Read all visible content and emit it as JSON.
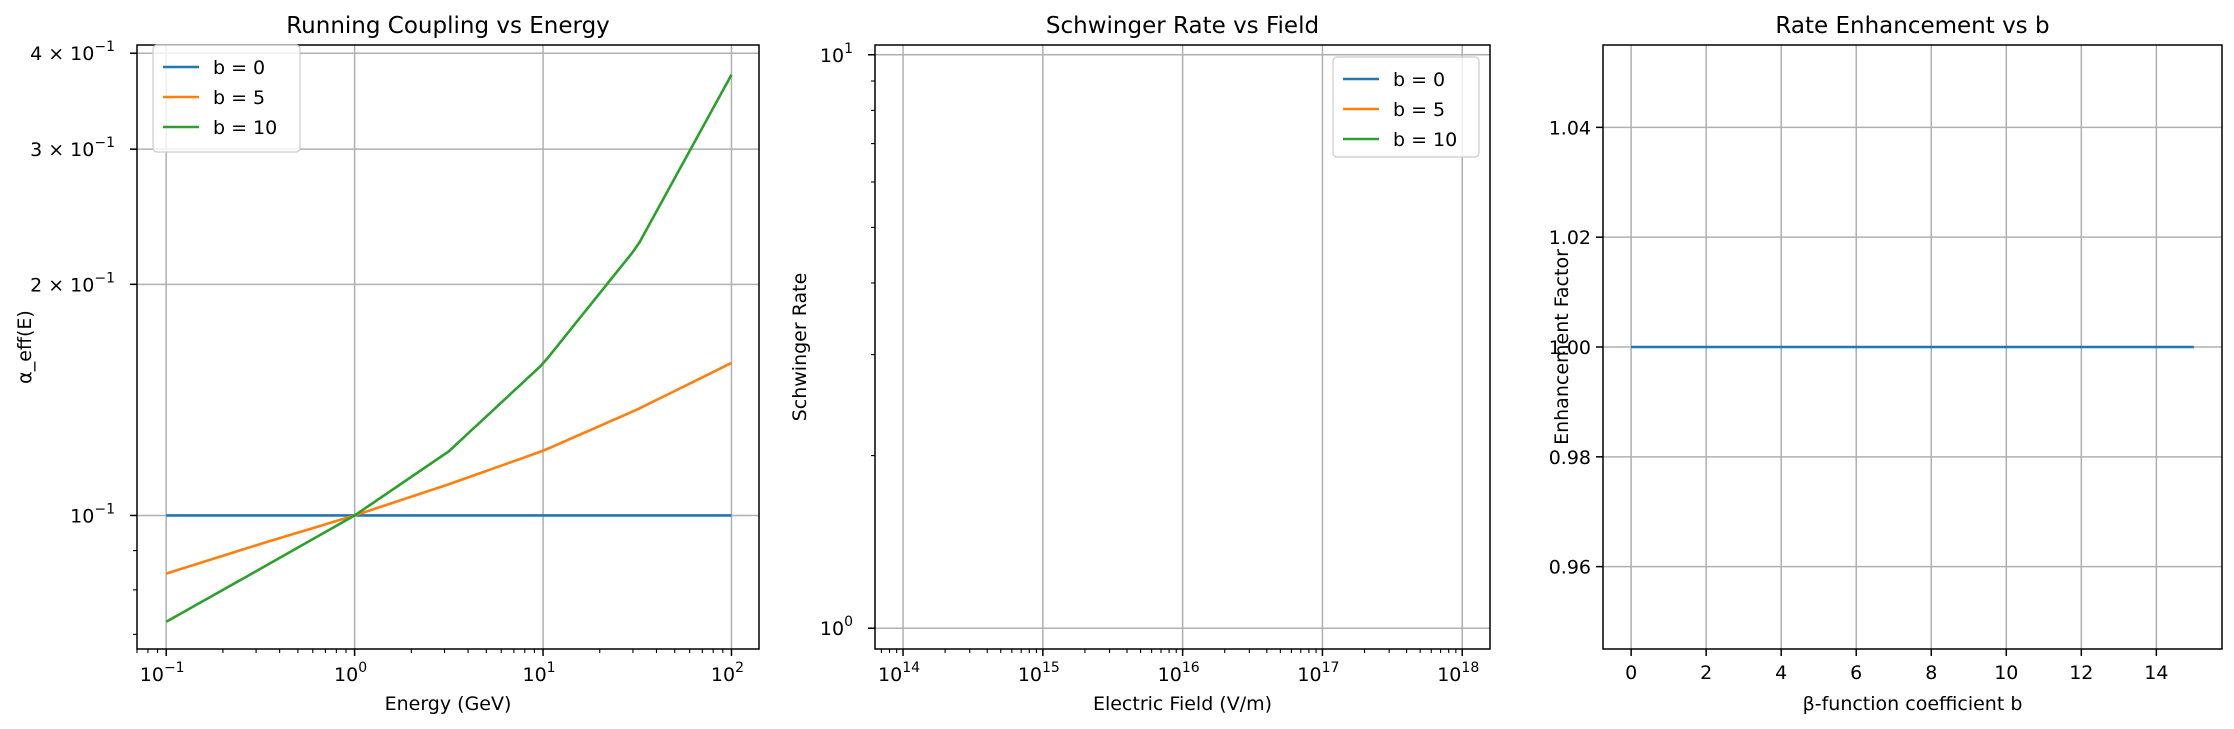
{
  "chart_data": [
    {
      "type": "line",
      "title": "Running Coupling vs Energy",
      "xlabel": "Energy (GeV)",
      "ylabel": "α_eff(E)",
      "xscale": "log",
      "yscale": "log",
      "xlim": [
        0.07,
        140
      ],
      "ylim": [
        0.067,
        0.41
      ],
      "xticks": [
        {
          "value": 0.1,
          "base": "10",
          "exp": "−1"
        },
        {
          "value": 1,
          "base": "10",
          "exp": "0"
        },
        {
          "value": 10,
          "base": "10",
          "exp": "1"
        },
        {
          "value": 100,
          "base": "10",
          "exp": "2"
        }
      ],
      "yticks": [
        {
          "value": 0.1,
          "label": "10",
          "exp": "−1"
        },
        {
          "value": 0.2,
          "label": "2 × 10",
          "exp": "−1"
        },
        {
          "value": 0.3,
          "label": "3 × 10",
          "exp": "−1"
        },
        {
          "value": 0.4,
          "label": "4 × 10",
          "exp": "−1"
        }
      ],
      "grid": true,
      "legend_position": "top-left",
      "series": [
        {
          "name": "b = 0",
          "color": "#1f77b4",
          "x": [
            0.1,
            0.316,
            1,
            3.16,
            10,
            31.6,
            100
          ],
          "y": [
            0.1,
            0.1,
            0.1,
            0.1,
            0.1,
            0.1,
            0.1
          ]
        },
        {
          "name": "b = 5",
          "color": "#ff7f0e",
          "x": [
            0.1,
            0.316,
            1,
            3.16,
            10,
            31.6,
            100
          ],
          "y": [
            0.084,
            0.0918,
            0.1,
            0.1098,
            0.1214,
            0.1374,
            0.158
          ]
        },
        {
          "name": "b = 10",
          "color": "#2ca02c",
          "x": [
            0.1,
            0.316,
            1,
            3.16,
            10,
            31.6,
            100
          ],
          "y": [
            0.0727,
            0.0852,
            0.1,
            0.1212,
            0.1576,
            0.224,
            0.375
          ]
        }
      ]
    },
    {
      "type": "line",
      "title": "Schwinger Rate vs Field",
      "xlabel": "Electric Field (V/m)",
      "ylabel": "Schwinger Rate",
      "xscale": "log",
      "yscale": "log",
      "xlim": [
        63000000000000.0,
        1.58e+18
      ],
      "ylim": [
        0.92,
        10.4
      ],
      "xticks": [
        {
          "value": 100000000000000.0,
          "base": "10",
          "exp": "14"
        },
        {
          "value": 1000000000000000.0,
          "base": "10",
          "exp": "15"
        },
        {
          "value": 1e+16,
          "base": "10",
          "exp": "16"
        },
        {
          "value": 1e+17,
          "base": "10",
          "exp": "17"
        },
        {
          "value": 1e+18,
          "base": "10",
          "exp": "18"
        }
      ],
      "yticks": [
        {
          "value": 1,
          "label": "10",
          "exp": "0"
        },
        {
          "value": 10,
          "label": "10",
          "exp": "1"
        }
      ],
      "grid": true,
      "legend_position": "top-right",
      "series": [
        {
          "name": "b = 0",
          "color": "#1f77b4",
          "x": [],
          "y": []
        },
        {
          "name": "b = 5",
          "color": "#ff7f0e",
          "x": [],
          "y": []
        },
        {
          "name": "b = 10",
          "color": "#2ca02c",
          "x": [],
          "y": []
        }
      ]
    },
    {
      "type": "line",
      "title": "Rate Enhancement vs b",
      "xlabel": "β-function coefficient b",
      "ylabel": "Enhancement Factor",
      "xscale": "linear",
      "yscale": "linear",
      "xlim": [
        -0.75,
        15.75
      ],
      "ylim": [
        0.945,
        1.055
      ],
      "xticks": [
        {
          "value": 0,
          "label": "0"
        },
        {
          "value": 2,
          "label": "2"
        },
        {
          "value": 4,
          "label": "4"
        },
        {
          "value": 6,
          "label": "6"
        },
        {
          "value": 8,
          "label": "8"
        },
        {
          "value": 10,
          "label": "10"
        },
        {
          "value": 12,
          "label": "12"
        },
        {
          "value": 14,
          "label": "14"
        }
      ],
      "yticks": [
        {
          "value": 0.96,
          "label": "0.96"
        },
        {
          "value": 0.98,
          "label": "0.98"
        },
        {
          "value": 1.0,
          "label": "1.00"
        },
        {
          "value": 1.02,
          "label": "1.02"
        },
        {
          "value": 1.04,
          "label": "1.04"
        }
      ],
      "grid": true,
      "legend_position": "none",
      "series": [
        {
          "color": "#1f77b4",
          "x": [
            0,
            15
          ],
          "y": [
            1.0,
            1.0
          ]
        }
      ]
    }
  ]
}
